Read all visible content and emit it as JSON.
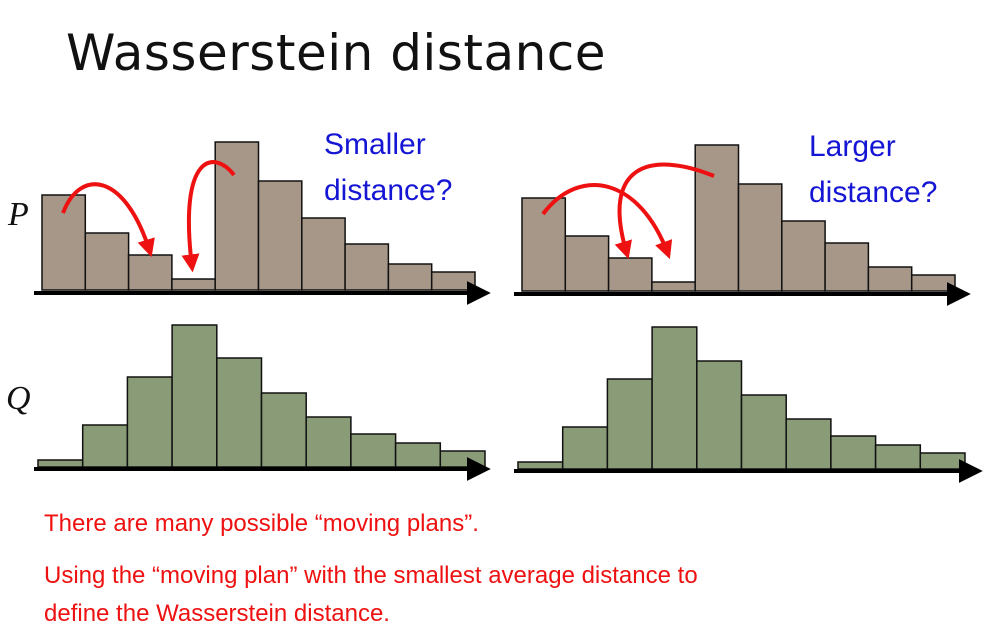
{
  "title": "Wasserstein distance",
  "row_labels": {
    "p": "P",
    "q": "Q"
  },
  "annotations": {
    "left": [
      "Smaller",
      "distance?"
    ],
    "right": [
      "Larger",
      "distance?"
    ]
  },
  "captions": [
    "There are many possible “moving plans”.",
    "Using the “moving plan” with the smallest average distance to",
    "define the Wasserstein distance."
  ],
  "colors": {
    "p_fill": "#a79788",
    "q_fill": "#8a9b78",
    "arrow": "#ee1111",
    "text_blue": "#1515d4",
    "caption": "#ee1111"
  },
  "chart_data": [
    {
      "type": "bar",
      "panel": "P-left",
      "values": [
        95,
        57,
        35,
        11,
        148,
        109,
        72,
        46,
        26,
        18
      ]
    },
    {
      "type": "bar",
      "panel": "P-right",
      "values": [
        93,
        55,
        33,
        9,
        146,
        107,
        70,
        48,
        24,
        16
      ]
    },
    {
      "type": "bar",
      "panel": "Q-left",
      "values": [
        7,
        42,
        90,
        142,
        109,
        74,
        50,
        33,
        24,
        16
      ]
    },
    {
      "type": "bar",
      "panel": "Q-right",
      "values": [
        7,
        42,
        90,
        142,
        108,
        74,
        50,
        33,
        24,
        16
      ]
    }
  ]
}
